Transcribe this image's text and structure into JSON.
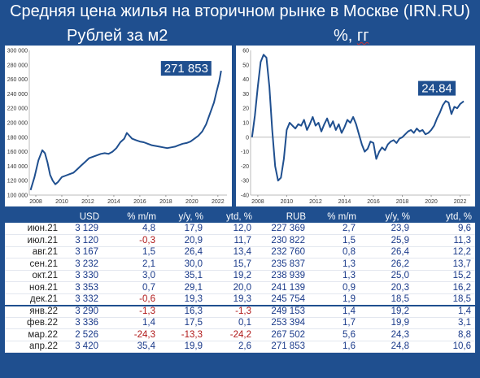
{
  "title": "Средняя цена жилья на вторичном рынке в Москве (IRN.RU)",
  "left_subtitle": "Рублей за м2",
  "right_subtitle_prefix": "%, ",
  "right_subtitle_unit": "гг",
  "chart_data": [
    {
      "type": "line",
      "title": "Рублей за м2",
      "color": "#1f4f8f",
      "ylim": [
        100000,
        300000
      ],
      "yticks": [
        100000,
        120000,
        140000,
        160000,
        180000,
        200000,
        220000,
        240000,
        260000,
        280000,
        300000
      ],
      "ytick_labels": [
        "100 000",
        "120 000",
        "140 000",
        "160 000",
        "180 000",
        "200 000",
        "220 000",
        "240 000",
        "260 000",
        "280 000",
        "300 000"
      ],
      "xlim": [
        2007.5,
        2022.7
      ],
      "xticks": [
        2008,
        2010,
        2012,
        2014,
        2016,
        2018,
        2020,
        2022
      ],
      "xtick_labels": [
        "2008",
        "2010",
        "2012",
        "2014",
        "2016",
        "2018",
        "2020",
        "2022"
      ],
      "callout": "271 853",
      "x": [
        2007.6,
        2007.9,
        2008.2,
        2008.5,
        2008.7,
        2008.9,
        2009.1,
        2009.3,
        2009.5,
        2009.7,
        2010.0,
        2010.3,
        2010.6,
        2010.9,
        2011.2,
        2011.5,
        2011.8,
        2012.1,
        2012.4,
        2012.7,
        2013.0,
        2013.3,
        2013.6,
        2013.9,
        2014.2,
        2014.5,
        2014.8,
        2015.0,
        2015.2,
        2015.4,
        2015.7,
        2016.0,
        2016.3,
        2016.6,
        2016.9,
        2017.2,
        2017.5,
        2017.8,
        2018.1,
        2018.4,
        2018.7,
        2019.0,
        2019.3,
        2019.6,
        2019.9,
        2020.2,
        2020.5,
        2020.8,
        2021.1,
        2021.4,
        2021.7,
        2021.9,
        2022.1,
        2022.25
      ],
      "y": [
        107000,
        125000,
        148000,
        162000,
        158000,
        145000,
        128000,
        120000,
        115000,
        118000,
        125000,
        127000,
        129000,
        131000,
        136000,
        141000,
        146000,
        151000,
        153000,
        155000,
        157000,
        158000,
        157000,
        160000,
        165000,
        173000,
        178000,
        186000,
        182000,
        178000,
        176000,
        174000,
        173000,
        171000,
        169000,
        168000,
        167000,
        166000,
        165000,
        166000,
        167000,
        169000,
        171000,
        172000,
        174000,
        178000,
        182000,
        188000,
        198000,
        213000,
        228000,
        243000,
        257000,
        271853
      ]
    },
    {
      "type": "line",
      "title": "%, гг",
      "color": "#1f4f8f",
      "ylim": [
        -40,
        60
      ],
      "yticks": [
        -40,
        -30,
        -20,
        -10,
        0,
        10,
        20,
        30,
        40,
        50,
        60
      ],
      "ytick_labels": [
        "-40",
        "-30",
        "-20",
        "-10",
        "0",
        "10",
        "20",
        "30",
        "40",
        "50",
        "60"
      ],
      "xlim": [
        2007.5,
        2022.7
      ],
      "xticks": [
        2008,
        2010,
        2012,
        2014,
        2016,
        2018,
        2020,
        2022
      ],
      "xtick_labels": [
        "2008",
        "2010",
        "2012",
        "2014",
        "2016",
        "2018",
        "2020",
        "2022"
      ],
      "callout": "24.84",
      "x": [
        2007.6,
        2007.8,
        2008.0,
        2008.2,
        2008.4,
        2008.6,
        2008.8,
        2009.0,
        2009.2,
        2009.4,
        2009.6,
        2009.8,
        2010.0,
        2010.2,
        2010.4,
        2010.6,
        2010.8,
        2011.0,
        2011.2,
        2011.4,
        2011.6,
        2011.8,
        2012.0,
        2012.2,
        2012.4,
        2012.6,
        2012.8,
        2013.0,
        2013.2,
        2013.4,
        2013.6,
        2013.8,
        2014.0,
        2014.2,
        2014.4,
        2014.6,
        2014.8,
        2015.0,
        2015.2,
        2015.4,
        2015.6,
        2015.8,
        2016.0,
        2016.2,
        2016.4,
        2016.6,
        2016.8,
        2017.0,
        2017.2,
        2017.4,
        2017.6,
        2017.8,
        2018.0,
        2018.2,
        2018.4,
        2018.6,
        2018.8,
        2019.0,
        2019.2,
        2019.4,
        2019.6,
        2019.8,
        2020.0,
        2020.2,
        2020.4,
        2020.6,
        2020.8,
        2021.0,
        2021.2,
        2021.4,
        2021.6,
        2021.8,
        2022.0,
        2022.25
      ],
      "y": [
        0,
        15,
        35,
        52,
        57,
        55,
        35,
        5,
        -20,
        -30,
        -28,
        -15,
        5,
        10,
        8,
        6,
        9,
        8,
        12,
        5,
        9,
        14,
        8,
        10,
        4,
        9,
        13,
        7,
        11,
        5,
        9,
        3,
        7,
        12,
        10,
        14,
        9,
        2,
        -5,
        -10,
        -8,
        -3,
        -4,
        -15,
        -10,
        -7,
        -9,
        -5,
        -3,
        -2,
        -4,
        -1,
        0,
        2,
        4,
        5,
        3,
        6,
        4,
        5,
        2,
        3,
        5,
        8,
        13,
        17,
        22,
        25,
        24,
        16,
        21,
        20,
        23,
        24.84
      ]
    }
  ],
  "table": {
    "headers": [
      "",
      "USD",
      "% m/m",
      "y/y, %",
      "ytd, %",
      "RUB",
      "% m/m",
      "y/y, %",
      "ytd, %"
    ],
    "rows": [
      {
        "date": "июн.21",
        "usd": "3 129",
        "usd_mm": "4,8",
        "usd_yy": "17,9",
        "usd_ytd": "12,0",
        "rub": "227 369",
        "rub_mm": "2,7",
        "rub_yy": "23,9",
        "rub_ytd": "9,6"
      },
      {
        "date": "июл.21",
        "usd": "3 120",
        "usd_mm": "-0,3",
        "usd_yy": "20,9",
        "usd_ytd": "11,7",
        "rub": "230 822",
        "rub_mm": "1,5",
        "rub_yy": "25,9",
        "rub_ytd": "11,3"
      },
      {
        "date": "авг.21",
        "usd": "3 167",
        "usd_mm": "1,5",
        "usd_yy": "26,4",
        "usd_ytd": "13,4",
        "rub": "232 760",
        "rub_mm": "0,8",
        "rub_yy": "26,4",
        "rub_ytd": "12,2"
      },
      {
        "date": "сен.21",
        "usd": "3 232",
        "usd_mm": "2,1",
        "usd_yy": "30,0",
        "usd_ytd": "15,7",
        "rub": "235 837",
        "rub_mm": "1,3",
        "rub_yy": "26,2",
        "rub_ytd": "13,7"
      },
      {
        "date": "окт.21",
        "usd": "3 330",
        "usd_mm": "3,0",
        "usd_yy": "35,1",
        "usd_ytd": "19,2",
        "rub": "238 939",
        "rub_mm": "1,3",
        "rub_yy": "25,0",
        "rub_ytd": "15,2"
      },
      {
        "date": "ноя.21",
        "usd": "3 353",
        "usd_mm": "0,7",
        "usd_yy": "29,1",
        "usd_ytd": "20,0",
        "rub": "241 139",
        "rub_mm": "0,9",
        "rub_yy": "20,3",
        "rub_ytd": "16,2"
      },
      {
        "date": "дек.21",
        "usd": "3 332",
        "usd_mm": "-0,6",
        "usd_yy": "19,3",
        "usd_ytd": "19,3",
        "rub": "245 754",
        "rub_mm": "1,9",
        "rub_yy": "18,5",
        "rub_ytd": "18,5"
      },
      {
        "date": "янв.22",
        "usd": "3 290",
        "usd_mm": "-1,3",
        "usd_yy": "16,3",
        "usd_ytd": "-1,3",
        "rub": "249 153",
        "rub_mm": "1,4",
        "rub_yy": "19,2",
        "rub_ytd": "1,4"
      },
      {
        "date": "фев.22",
        "usd": "3 336",
        "usd_mm": "1,4",
        "usd_yy": "17,5",
        "usd_ytd": "0,1",
        "rub": "253 394",
        "rub_mm": "1,7",
        "rub_yy": "19,9",
        "rub_ytd": "3,1"
      },
      {
        "date": "мар.22",
        "usd": "2 526",
        "usd_mm": "-24,3",
        "usd_yy": "-13,3",
        "usd_ytd": "-24,2",
        "rub": "267 502",
        "rub_mm": "5,6",
        "rub_yy": "24,3",
        "rub_ytd": "8,8"
      },
      {
        "date": "апр.22",
        "usd": "3 420",
        "usd_mm": "35,4",
        "usd_yy": "19,9",
        "usd_ytd": "2,6",
        "rub": "271 853",
        "rub_mm": "1,6",
        "rub_yy": "24,8",
        "rub_ytd": "10,6"
      }
    ]
  }
}
